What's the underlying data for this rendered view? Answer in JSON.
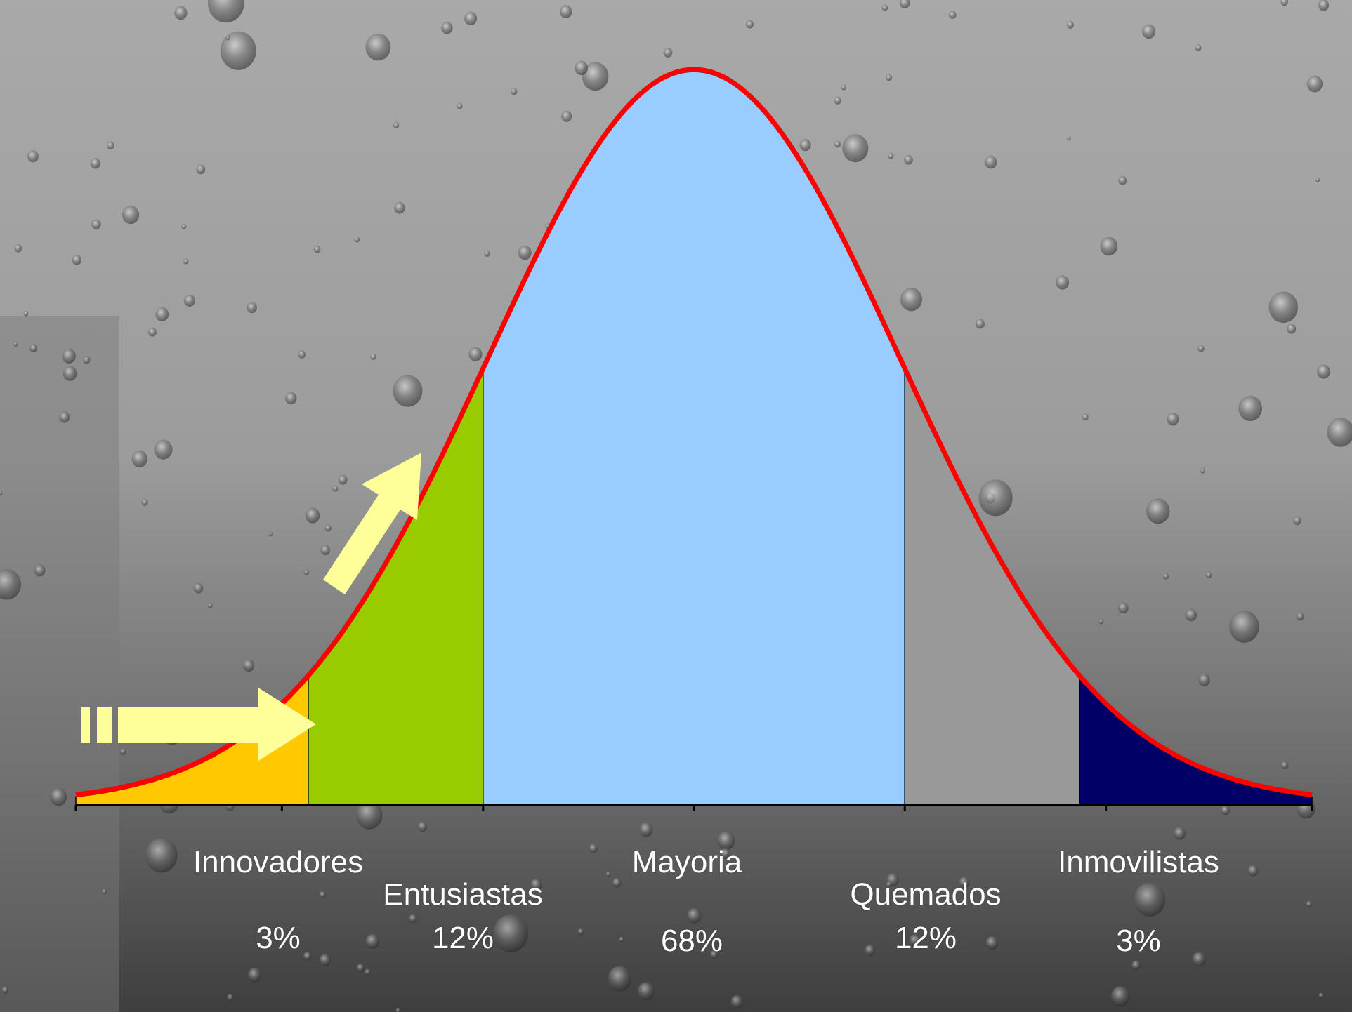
{
  "chart_data": {
    "type": "area",
    "title": "",
    "xlabel": "",
    "ylabel": "",
    "grid": false,
    "segments": [
      {
        "name": "Innovadores",
        "percent": "3%",
        "share": 3,
        "color": "#FFC800"
      },
      {
        "name": "Entusiastas",
        "percent": "12%",
        "share": 12,
        "color": "#99CC00"
      },
      {
        "name": "Mayoria",
        "percent": "68%",
        "share": 68,
        "color": "#99CCFF"
      },
      {
        "name": "Quemados",
        "percent": "12%",
        "share": 12,
        "color": "#999999"
      },
      {
        "name": "Inmovilistas",
        "percent": "3%",
        "share": 3,
        "color": "#000066"
      }
    ],
    "curve_color": "#FF0000",
    "arrow_color": "#FFFF99",
    "distribution": "normal",
    "x_range_sd": [
      -3,
      3
    ]
  }
}
